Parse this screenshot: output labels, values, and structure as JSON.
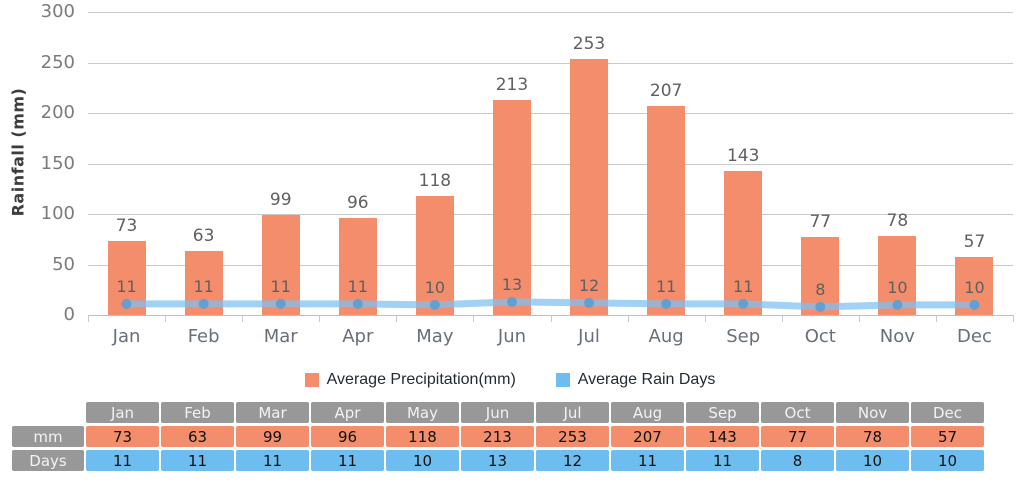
{
  "chart_data": {
    "type": "bar+line",
    "title": "",
    "ylabel": "Rainfall (mm)",
    "ylim": [
      0,
      300
    ],
    "yticks": [
      300,
      250,
      200,
      150,
      100,
      50,
      0
    ],
    "categories": [
      "Jan",
      "Feb",
      "Mar",
      "Apr",
      "May",
      "Jun",
      "Jul",
      "Aug",
      "Sep",
      "Oct",
      "Nov",
      "Dec"
    ],
    "series": [
      {
        "name": "Average Precipitation(mm)",
        "type": "bar",
        "color": "#F48D6B",
        "values": [
          73,
          63,
          99,
          96,
          118,
          213,
          253,
          207,
          143,
          77,
          78,
          57
        ]
      },
      {
        "name": "Average Rain Days",
        "type": "line",
        "color": "#6DBDF0",
        "line_color": "rgba(125,193,242,0.72)",
        "marker_color": "rgba(85,158,214,0.85)",
        "values": [
          11,
          11,
          11,
          11,
          10,
          13,
          12,
          11,
          11,
          8,
          10,
          10
        ]
      }
    ],
    "grid": true,
    "legend_position": "bottom"
  },
  "legend": {
    "items": [
      {
        "label": "Average Precipitation(mm)",
        "color": "#F48D6B"
      },
      {
        "label": "Average Rain Days",
        "color": "#6DBDF0"
      }
    ]
  },
  "table": {
    "corner_label": "",
    "columns": [
      "Jan",
      "Feb",
      "Mar",
      "Apr",
      "May",
      "Jun",
      "Jul",
      "Aug",
      "Sep",
      "Oct",
      "Nov",
      "Dec"
    ],
    "header_color": "#989898",
    "rows": [
      {
        "label": "mm",
        "cell_color": "#F48D6B",
        "values": [
          "73",
          "63",
          "99",
          "96",
          "118",
          "213",
          "253",
          "207",
          "143",
          "77",
          "78",
          "57"
        ]
      },
      {
        "label": "Days",
        "cell_color": "#6DBDF0",
        "values": [
          "11",
          "11",
          "11",
          "11",
          "10",
          "13",
          "12",
          "11",
          "11",
          "8",
          "10",
          "10"
        ]
      }
    ]
  },
  "colors": {
    "grid": "#C9C9C9",
    "axis": "#BDBDBD",
    "ytick_label": "#7B7B7B",
    "month_label": "#66707A",
    "bar_label": "#606060",
    "line_label": "#5F5F5F",
    "ylabel_text": "#3C3C3C"
  }
}
